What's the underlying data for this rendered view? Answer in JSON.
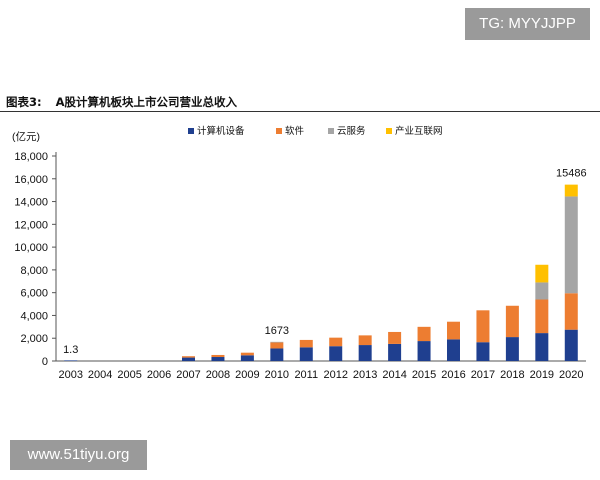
{
  "watermarks": {
    "top_right": "TG: MYYJJPP",
    "bottom_left": "www.51tiyu.org"
  },
  "figure": {
    "number": "图表3:",
    "title": "A股计算机板块上市公司营业总收入"
  },
  "chart_data": {
    "type": "bar",
    "stacked": true,
    "ylabel": "(亿元)",
    "ylim": [
      0,
      18000
    ],
    "yticks": [
      "0",
      "2,000",
      "4,000",
      "6,000",
      "8,000",
      "10,000",
      "12,000",
      "14,000",
      "16,000",
      "18,000"
    ],
    "grid": false,
    "legend_position": "top",
    "categories": [
      "2003",
      "2004",
      "2005",
      "2006",
      "2007",
      "2008",
      "2009",
      "2010",
      "2011",
      "2012",
      "2013",
      "2014",
      "2015",
      "2016",
      "2017",
      "2018",
      "2019",
      "2020"
    ],
    "series": [
      {
        "name": "计算机设备",
        "color": "#1f3f8f",
        "values": [
          1.3,
          0,
          0,
          0,
          300,
          350,
          500,
          1100,
          1200,
          1300,
          1400,
          1500,
          1750,
          1900,
          1650,
          2100,
          2450,
          2750
        ]
      },
      {
        "name": "软件",
        "color": "#ed7d31",
        "values": [
          0,
          0,
          0,
          0,
          120,
          180,
          230,
          530,
          650,
          750,
          850,
          1050,
          1250,
          1550,
          2800,
          2750,
          2950,
          3200
        ]
      },
      {
        "name": "云服务",
        "color": "#a5a5a5",
        "values": [
          0,
          0,
          0,
          0,
          0,
          0,
          0,
          43,
          0,
          0,
          0,
          0,
          0,
          0,
          0,
          0,
          1500,
          8500
        ]
      },
      {
        "name": "产业互联网",
        "color": "#ffc000",
        "values": [
          0,
          0,
          0,
          0,
          0,
          0,
          0,
          0,
          0,
          0,
          0,
          0,
          0,
          0,
          0,
          0,
          1550,
          1036
        ]
      }
    ],
    "annotations": [
      {
        "category": "2003",
        "text": "1.3"
      },
      {
        "category": "2010",
        "text": "1673"
      },
      {
        "category": "2020",
        "text": "15486"
      }
    ]
  }
}
